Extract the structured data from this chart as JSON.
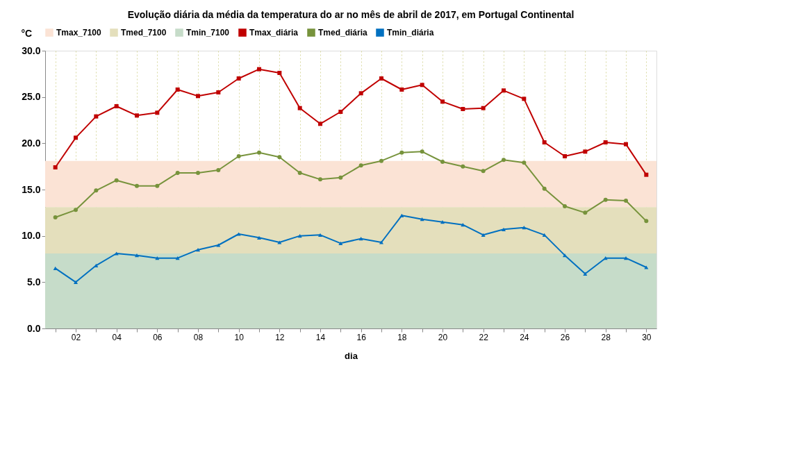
{
  "chart_data": {
    "type": "line",
    "title": "Evolução diária da média da temperatura do ar  no mês de abril de 2017, em Portugal Continental",
    "xlabel": "dia",
    "ylabel": "°C",
    "categories": [
      null,
      "02",
      null,
      "04",
      null,
      "06",
      null,
      "08",
      null,
      "10",
      null,
      "12",
      null,
      "14",
      null,
      "16",
      null,
      "18",
      null,
      "20",
      null,
      "22",
      null,
      "24",
      null,
      "26",
      null,
      "28",
      null,
      "30"
    ],
    "series": [
      {
        "name": "Tmax_diária",
        "color": "#c00000",
        "marker": "square",
        "values": [
          17.4,
          20.6,
          22.9,
          24.0,
          23.0,
          23.3,
          25.8,
          25.1,
          25.5,
          27.0,
          28.0,
          27.6,
          23.8,
          22.1,
          23.4,
          25.4,
          27.0,
          25.8,
          26.3,
          24.5,
          23.7,
          23.8,
          25.7,
          24.8,
          20.1,
          18.6,
          19.1,
          20.1,
          19.9,
          16.6
        ]
      },
      {
        "name": "Tmed_diária",
        "color": "#77933c",
        "marker": "circle",
        "values": [
          12.0,
          12.8,
          14.9,
          16.0,
          15.4,
          15.4,
          16.8,
          16.8,
          17.1,
          18.6,
          19.0,
          18.5,
          16.8,
          16.1,
          16.3,
          17.6,
          18.1,
          19.0,
          19.1,
          18.0,
          17.5,
          17.0,
          18.2,
          17.9,
          15.1,
          13.2,
          12.5,
          13.9,
          13.8,
          11.6
        ]
      },
      {
        "name": "Tmin_diária",
        "color": "#0070c0",
        "marker": "triangle",
        "values": [
          6.5,
          5.0,
          6.8,
          8.1,
          7.9,
          7.6,
          7.6,
          8.5,
          9.0,
          10.2,
          9.8,
          9.3,
          10.0,
          10.1,
          9.2,
          9.7,
          9.3,
          12.2,
          11.8,
          11.5,
          11.2,
          10.1,
          10.7,
          10.9,
          10.1,
          7.9,
          5.9,
          7.6,
          7.6,
          6.6
        ]
      }
    ],
    "bands": [
      {
        "axis": "y",
        "from": 13.1,
        "to": 18.1,
        "label": "Tmax_7100",
        "color": "#fbe3d5"
      },
      {
        "axis": "y",
        "from": 8.1,
        "to": 13.1,
        "label": "Tmed_7100",
        "color": "#e4dfbc"
      },
      {
        "axis": "y",
        "from": 0,
        "to": 8.1,
        "label": "Tmin_7100",
        "color": "#c6dcc9"
      }
    ],
    "ylim": [
      0,
      30
    ],
    "yticks": [
      {
        "value": 0,
        "label": "0.0"
      },
      {
        "value": 5,
        "label": "5.0"
      },
      {
        "value": 10,
        "label": "10.0"
      },
      {
        "value": 15,
        "label": "15.0"
      },
      {
        "value": 20,
        "label": "20.0"
      },
      {
        "value": 25,
        "label": "25.0"
      },
      {
        "value": 30,
        "label": "30.0"
      }
    ],
    "grid": "x",
    "legend": "top",
    "line_style": "solid"
  }
}
